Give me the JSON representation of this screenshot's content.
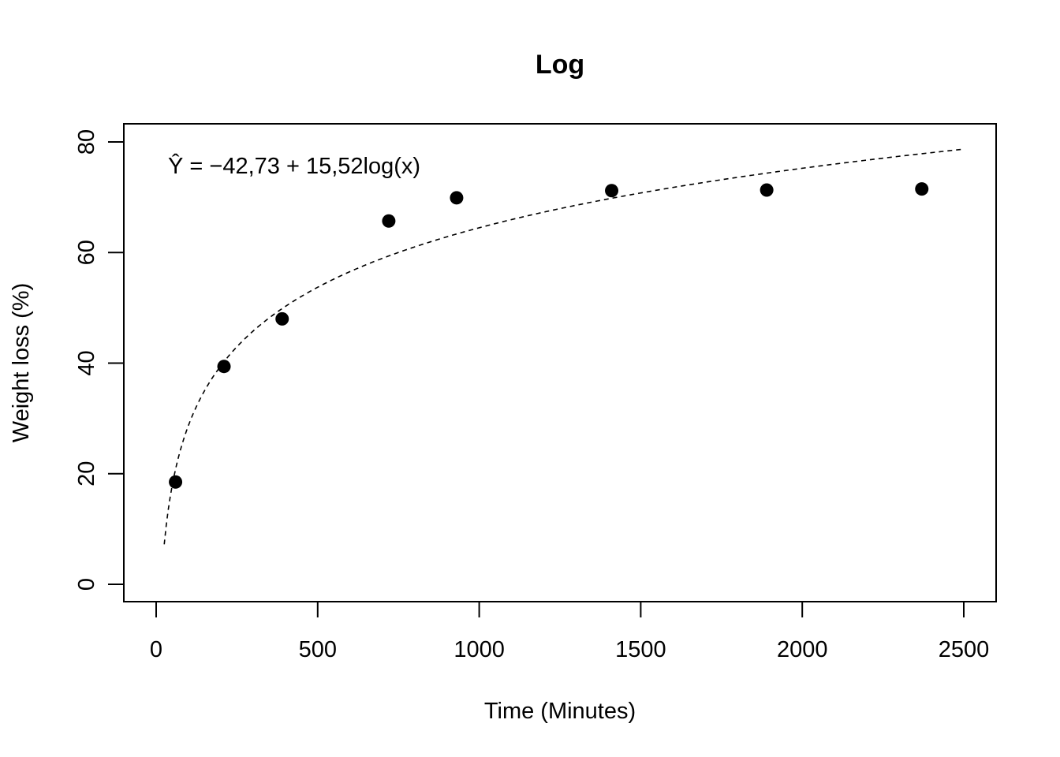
{
  "chart_data": {
    "type": "scatter",
    "title": "Log",
    "xlabel": "Time (Minutes)",
    "ylabel": "Weight loss (%)",
    "xlim": [
      0,
      2500
    ],
    "ylim": [
      0,
      80
    ],
    "x_ticks": [
      0,
      500,
      1000,
      1500,
      2000,
      2500
    ],
    "y_ticks": [
      0,
      20,
      40,
      60,
      80
    ],
    "x_tick_labels": [
      "0",
      "500",
      "1000",
      "1500",
      "2000",
      "2500"
    ],
    "y_tick_labels": [
      "0",
      "20",
      "40",
      "60",
      "80"
    ],
    "grid": false,
    "series": [
      {
        "points": [
          {
            "x": 60,
            "y": 18.5
          },
          {
            "x": 210,
            "y": 39.4
          },
          {
            "x": 390,
            "y": 48.0
          },
          {
            "x": 720,
            "y": 65.7
          },
          {
            "x": 930,
            "y": 69.9
          },
          {
            "x": 1410,
            "y": 71.2
          },
          {
            "x": 1890,
            "y": 71.3
          },
          {
            "x": 2370,
            "y": 71.5
          }
        ]
      }
    ],
    "fit": {
      "equation_label": "Ŷ = −42,73 + 15,52log(x)",
      "intercept": -42.73,
      "slope": 15.52,
      "x_range": [
        25,
        2500
      ],
      "line_style": "dashed"
    }
  }
}
